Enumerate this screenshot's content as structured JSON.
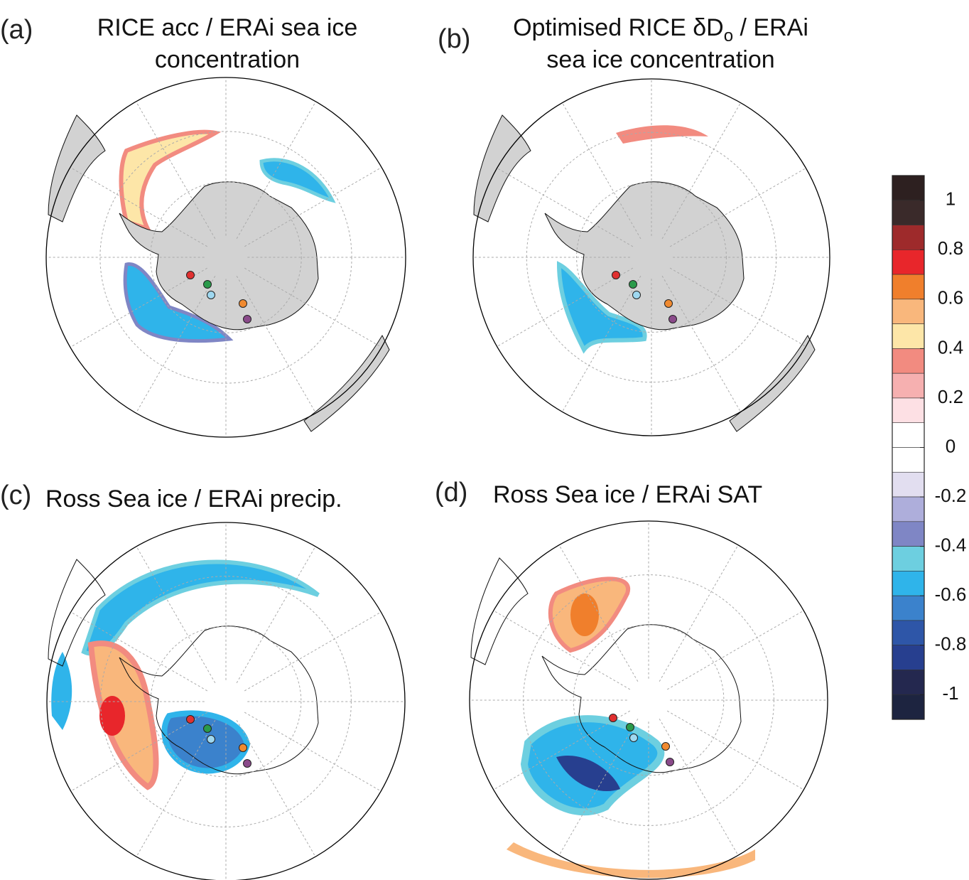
{
  "panels": [
    {
      "label": "(a)",
      "title_lines": [
        "RICE acc / ERAi sea ice",
        "concentration"
      ]
    },
    {
      "label": "(b)",
      "title_lines": [
        {
          "text": "Optimised RICE δD",
          "subscript": "o",
          "after": " / ERAi"
        },
        "sea ice concentration"
      ]
    },
    {
      "label": "(c)",
      "title_lines": [
        "Ross Sea ice / ERAi precip."
      ]
    },
    {
      "label": "(d)",
      "title_lines": [
        "Ross Sea ice / ERAi SAT"
      ]
    }
  ],
  "colorbar": {
    "lim": [
      -1.1,
      1.1
    ],
    "ticks": [
      1,
      0.8,
      0.6,
      0.4,
      0.2,
      0,
      -0.2,
      -0.4,
      -0.6,
      -0.8,
      -1
    ],
    "colors": [
      "#2d2020",
      "#3a2a2a",
      "#9e2a2b",
      "#e8262b",
      "#f07f2c",
      "#f9b77c",
      "#fde6a8",
      "#f28b80",
      "#f6b0b0",
      "#fde0e4",
      "#ffffff",
      "#ffffff",
      "#e2def0",
      "#aeaedb",
      "#7f86c5",
      "#6dcfe0",
      "#2fb4ea",
      "#3b82cc",
      "#2e56a8",
      "#273f8f",
      "#24284f",
      "#1d2440"
    ]
  }
}
